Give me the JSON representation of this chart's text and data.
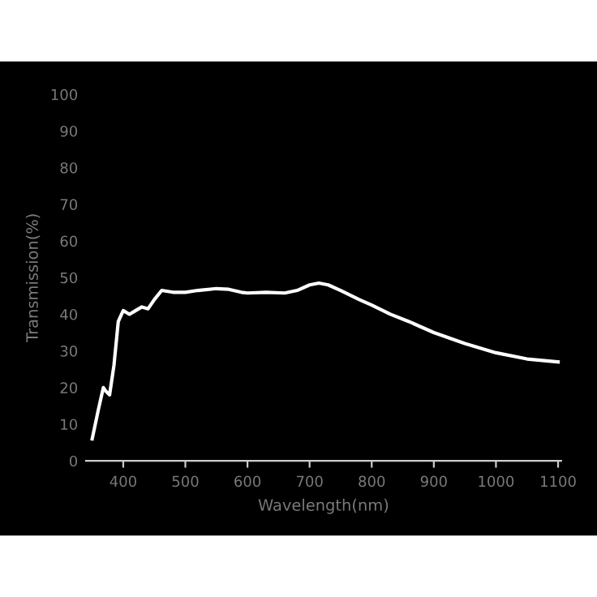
{
  "chart_data": {
    "type": "line",
    "xlabel": "Wavelength(nm)",
    "ylabel": "Transmission(%)",
    "x": [
      350,
      360,
      368,
      372,
      378,
      385,
      392,
      400,
      410,
      420,
      430,
      440,
      450,
      462,
      480,
      500,
      520,
      550,
      570,
      590,
      600,
      630,
      660,
      680,
      700,
      715,
      730,
      750,
      780,
      800,
      830,
      860,
      880,
      900,
      950,
      1000,
      1050,
      1100
    ],
    "series": [
      {
        "color": "#ffffff",
        "values": [
          6,
          14,
          20,
          19,
          18,
          26,
          38,
          41,
          40,
          41,
          42,
          41.5,
          44,
          46.5,
          46,
          46,
          46.5,
          47,
          46.8,
          46,
          45.8,
          46,
          45.8,
          46.5,
          48,
          48.5,
          48,
          46.5,
          44,
          42.5,
          40,
          38,
          36.5,
          35,
          32,
          29.5,
          27.8,
          27
        ]
      }
    ],
    "xlim": [
      340,
      1105
    ],
    "ylim": [
      0,
      100
    ],
    "xticks": [
      400,
      500,
      600,
      700,
      800,
      900,
      1000,
      1100
    ],
    "yticks": [
      0,
      10,
      20,
      30,
      40,
      50,
      60,
      70,
      80,
      90,
      100
    ],
    "grid": false,
    "legend": false,
    "marker": "none",
    "line_style": "solid"
  }
}
